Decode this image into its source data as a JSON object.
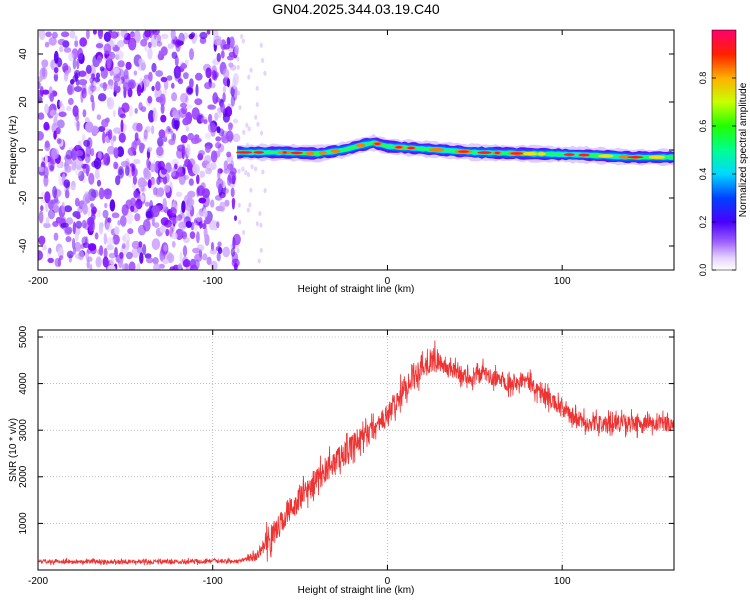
{
  "title": "GN04.2025.344.03.19.C40",
  "chart_data": [
    {
      "type": "heatmap",
      "title": "GN04.2025.344.03.19.C40",
      "xlabel": "Height of straight line (km)",
      "ylabel": "Frequency (Hz)",
      "xlim": [
        -200,
        164
      ],
      "ylim": [
        -50,
        50
      ],
      "xticks": [
        -200,
        -100,
        0,
        100
      ],
      "yticks": [
        -40,
        -20,
        0,
        20,
        40
      ],
      "colorbar": {
        "label": "Normalized spectral amplitude",
        "range": [
          0,
          1
        ],
        "ticks": [
          0.0,
          0.2,
          0.4,
          0.6,
          0.8
        ]
      },
      "signal_band": {
        "x_start": -86,
        "x_end": 164,
        "center_freq": [
          {
            "x": -86,
            "f": -1
          },
          {
            "x": -60,
            "f": -1
          },
          {
            "x": -40,
            "f": -1.5
          },
          {
            "x": -25,
            "f": 0
          },
          {
            "x": -15,
            "f": 2
          },
          {
            "x": -8,
            "f": 3
          },
          {
            "x": 0,
            "f": 1.5
          },
          {
            "x": 20,
            "f": 0.5
          },
          {
            "x": 50,
            "f": -1
          },
          {
            "x": 80,
            "f": -1.5
          },
          {
            "x": 110,
            "f": -2
          },
          {
            "x": 140,
            "f": -3
          },
          {
            "x": 164,
            "f": -3
          }
        ],
        "description_noise_region_until": -86
      }
    },
    {
      "type": "line",
      "xlabel": "Height of straight line (km)",
      "ylabel": "SNR (10 * v/v)",
      "xlim": [
        -200,
        164
      ],
      "ylim": [
        0,
        5150
      ],
      "xticks": [
        -200,
        -100,
        0,
        100
      ],
      "yticks": [
        1000,
        2000,
        3000,
        4000,
        5000
      ],
      "color": "#ee3333",
      "series": [
        {
          "name": "SNR",
          "x": [
            -200,
            -180,
            -160,
            -140,
            -120,
            -100,
            -85,
            -75,
            -70,
            -65,
            -60,
            -55,
            -50,
            -45,
            -40,
            -35,
            -30,
            -25,
            -20,
            -15,
            -10,
            -5,
            0,
            5,
            10,
            15,
            20,
            25,
            30,
            35,
            40,
            45,
            50,
            55,
            60,
            65,
            70,
            75,
            80,
            85,
            90,
            95,
            100,
            105,
            110,
            115,
            120,
            125,
            130,
            135,
            140,
            145,
            150,
            155,
            160,
            164
          ],
          "y": [
            180,
            185,
            180,
            175,
            180,
            185,
            190,
            300,
            550,
            800,
            1050,
            1300,
            1550,
            1750,
            1950,
            2150,
            2350,
            2500,
            2650,
            2800,
            2950,
            3100,
            3300,
            3600,
            3900,
            4200,
            4350,
            4500,
            4450,
            4300,
            4250,
            4150,
            4100,
            4250,
            4100,
            4100,
            4000,
            4100,
            4050,
            3900,
            3750,
            3600,
            3450,
            3300,
            3200,
            3150,
            3150,
            3100,
            3200,
            3150,
            3150,
            3100,
            3150,
            3100,
            3150,
            3150
          ]
        }
      ],
      "noise_amplitude": 150
    }
  ]
}
